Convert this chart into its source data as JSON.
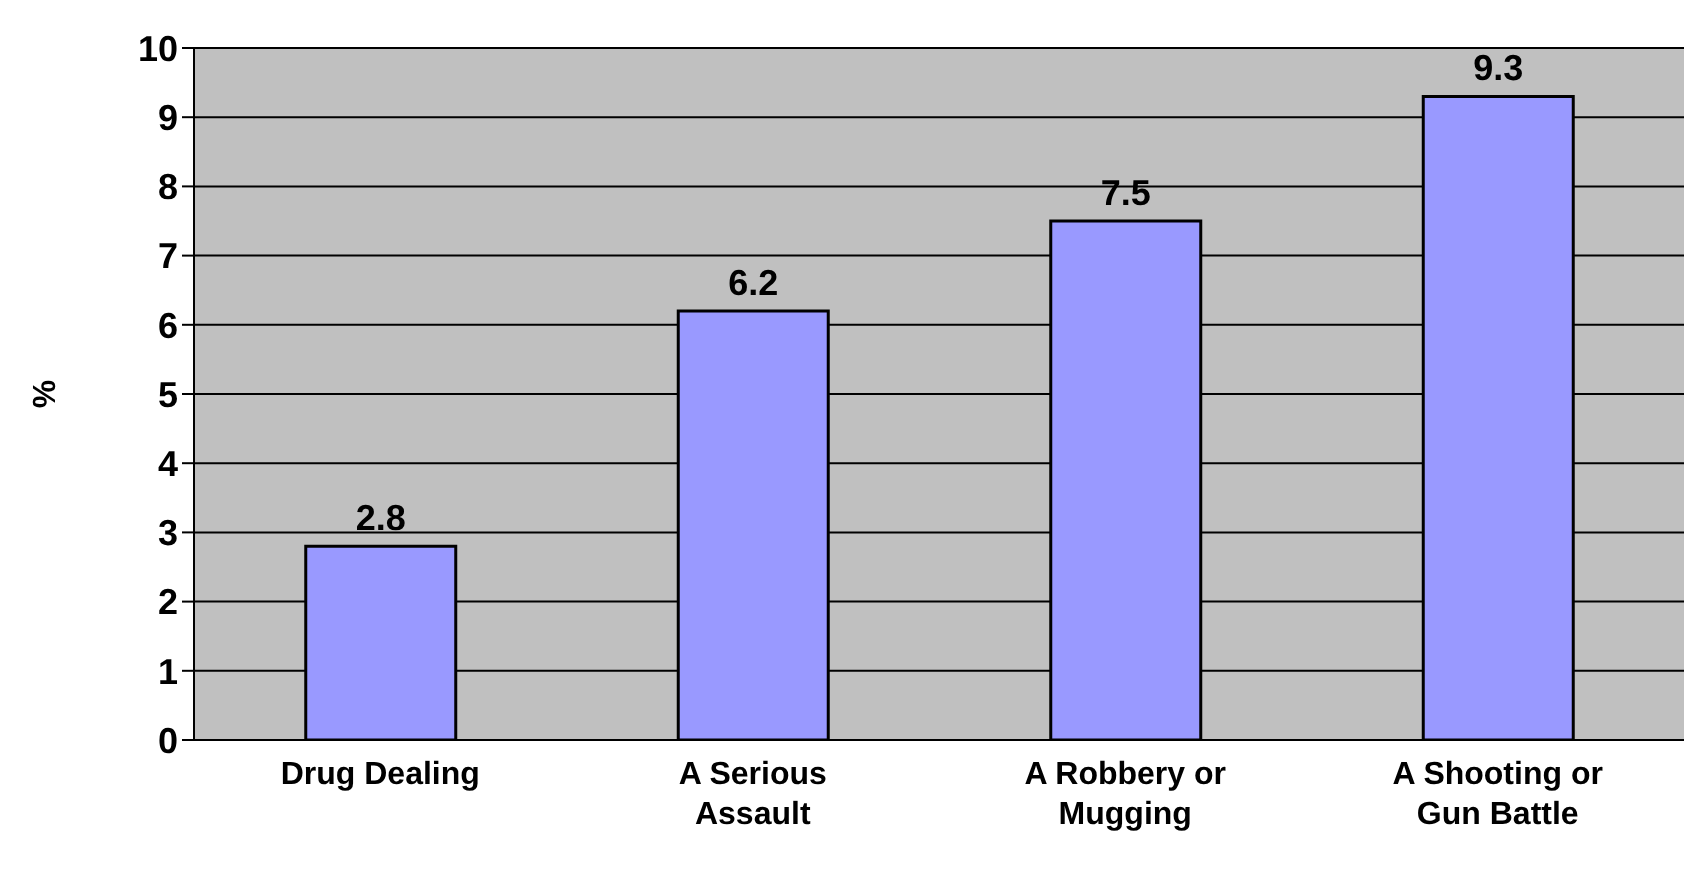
{
  "chart_data": {
    "type": "bar",
    "ylabel": "%",
    "categories": [
      "Drug Dealing",
      "A Serious Assault",
      "A Robbery or Mugging",
      "A Shooting or Gun Battle"
    ],
    "values": [
      2.8,
      6.2,
      7.5,
      9.3
    ],
    "color": "#9999ff",
    "ylim": [
      0,
      10
    ],
    "yticks": [
      0,
      1,
      2,
      3,
      4,
      5,
      6,
      7,
      8,
      9,
      10
    ],
    "grid": "y",
    "data_labels": true
  }
}
